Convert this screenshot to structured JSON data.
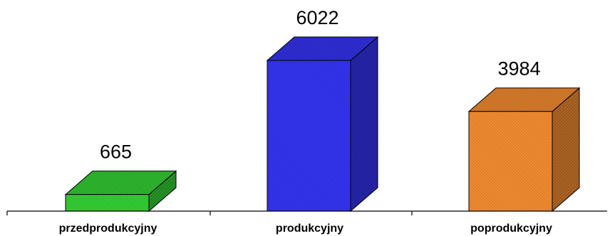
{
  "chart_data": {
    "type": "bar",
    "style": "3d-column",
    "categories": [
      "przedprodukcyjny",
      "produkcyjny",
      "poprodukcyjny"
    ],
    "values": [
      665,
      6022,
      3984
    ],
    "data_labels": [
      "665",
      "6022",
      "3984"
    ],
    "colors": [
      "#33cc33",
      "#3333ee",
      "#f08a30"
    ],
    "ylim": [
      0,
      6022
    ],
    "grid": false,
    "legend": "none",
    "title": "",
    "xlabel": "",
    "ylabel": ""
  }
}
